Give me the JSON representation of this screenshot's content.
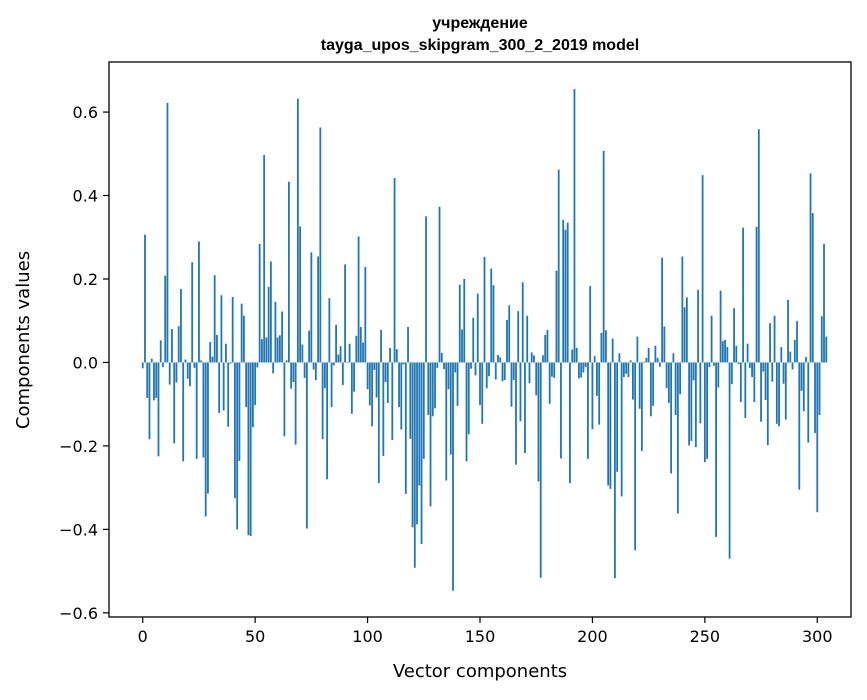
{
  "chart_data": {
    "type": "bar",
    "title": "учреждение",
    "subtitle": "tayga_upos_skipgram_300_2_2019 model",
    "xlabel": "Vector components",
    "ylabel": "Components values",
    "xlim": [
      -15,
      315
    ],
    "ylim": [
      -0.61,
      0.72
    ],
    "xticks": [
      0,
      50,
      100,
      150,
      200,
      250,
      300
    ],
    "xtick_labels": [
      "0",
      "50",
      "100",
      "150",
      "200",
      "250",
      "300"
    ],
    "yticks": [
      -0.6,
      -0.4,
      -0.2,
      0.0,
      0.2,
      0.4,
      0.6
    ],
    "ytick_labels": [
      "−0.6",
      "−0.4",
      "−0.2",
      "0.0",
      "0.2",
      "0.4",
      "0.6"
    ],
    "bar_color": "#1f77b4",
    "grid": false,
    "values": [
      -0.014,
      0.306,
      -0.085,
      -0.184,
      0.009,
      -0.091,
      -0.085,
      -0.225,
      0.053,
      -0.011,
      0.208,
      0.622,
      -0.053,
      0.08,
      -0.194,
      -0.048,
      0.087,
      0.176,
      -0.237,
      0.007,
      -0.039,
      -0.057,
      0.24,
      -0.013,
      -0.231,
      0.29,
      0.005,
      -0.228,
      -0.369,
      -0.314,
      0.049,
      0.014,
      0.209,
      0.066,
      -0.121,
      0.161,
      -0.115,
      0.045,
      -0.154,
      -0.003,
      0.157,
      -0.325,
      -0.4,
      -0.236,
      0.141,
      0.112,
      -0.107,
      -0.414,
      -0.416,
      -0.155,
      -0.102,
      -0.012,
      0.284,
      0.056,
      0.497,
      0.06,
      0.181,
      0.242,
      -0.026,
      0.145,
      0.06,
      0.065,
      0.122,
      -0.177,
      0.005,
      0.433,
      -0.063,
      -0.047,
      -0.197,
      0.632,
      0.326,
      0.043,
      -0.037,
      -0.398,
      0.076,
      0.264,
      -0.017,
      -0.042,
      0.254,
      0.563,
      -0.184,
      -0.062,
      -0.28,
      0.154,
      -0.107,
      -0.007,
      0.09,
      0.019,
      0.039,
      -0.054,
      0.235,
      -0.001,
      0.045,
      -0.123,
      -0.07,
      0.064,
      0.302,
      0.085,
      0.048,
      0.229,
      -0.064,
      -0.103,
      -0.153,
      -0.018,
      -0.084,
      -0.289,
      0.078,
      -0.224,
      -0.047,
      -0.097,
      0.035,
      -0.186,
      0.442,
      0.032,
      -0.107,
      -0.161,
      -0.005,
      -0.315,
      0.085,
      -0.183,
      -0.395,
      -0.492,
      -0.388,
      -0.295,
      -0.435,
      -0.231,
      0.35,
      -0.126,
      -0.345,
      -0.129,
      -0.11,
      -0.013,
      0.373,
      0.023,
      -0.016,
      -0.283,
      -0.064,
      -0.221,
      -0.547,
      -0.024,
      -0.104,
      0.186,
      0.079,
      0.2,
      -0.237,
      -0.172,
      -0.015,
      0.107,
      -0.031,
      0.165,
      -0.102,
      -0.147,
      0.253,
      -0.062,
      -0.033,
      0.225,
      0.185,
      -0.041,
      0.018,
      0.012,
      -0.045,
      -0.042,
      0.102,
      0.137,
      -0.106,
      -0.042,
      -0.245,
      0.123,
      -0.141,
      0.192,
      -0.217,
      0.112,
      -0.05,
      0.024,
      0.017,
      -0.079,
      -0.285,
      -0.516,
      0.017,
      0.066,
      0.078,
      -0.099,
      -0.034,
      -0.037,
      0.22,
      0.462,
      -0.23,
      0.342,
      0.318,
      0.335,
      -0.289,
      0.031,
      0.655,
      0.035,
      -0.038,
      -0.036,
      -0.024,
      -0.011,
      -0.231,
      0.183,
      -0.16,
      0.015,
      -0.08,
      -0.149,
      0.071,
      0.507,
      0.077,
      -0.295,
      -0.303,
      0.057,
      -0.517,
      -0.262,
      0.022,
      -0.321,
      -0.035,
      -0.027,
      -0.035,
      0.005,
      -0.089,
      -0.45,
      0.062,
      -0.111,
      -0.212,
      0.002,
      0.011,
      0.035,
      -0.129,
      -0.104,
      0.04,
      0.011,
      -0.01,
      0.251,
      0.086,
      -0.062,
      -0.097,
      -0.266,
      0.022,
      -0.126,
      -0.362,
      -0.076,
      0.254,
      0.132,
      0.156,
      -0.199,
      -0.188,
      -0.043,
      -0.203,
      0.174,
      -0.146,
      0.449,
      -0.239,
      -0.231,
      -0.011,
      0.112,
      -0.008,
      -0.418,
      -0.06,
      0.172,
      0.051,
      0.054,
      0.037,
      -0.47,
      -0.052,
      0.13,
      0.04,
      -0.004,
      -0.095,
      0.323,
      -0.133,
      0.045,
      -0.013,
      -0.035,
      -0.095,
      0.325,
      0.559,
      -0.142,
      -0.022,
      -0.09,
      -0.198,
      0.094,
      -0.046,
      0.112,
      -0.147,
      -0.153,
      0.037,
      -0.051,
      -0.137,
      0.15,
      0.026,
      -0.017,
      0.054,
      0.099,
      -0.305,
      -0.068,
      -0.117,
      0.013,
      -0.192,
      0.453,
      0.358,
      -0.169,
      -0.359,
      -0.126,
      0.111,
      0.284,
      0.062
    ]
  }
}
